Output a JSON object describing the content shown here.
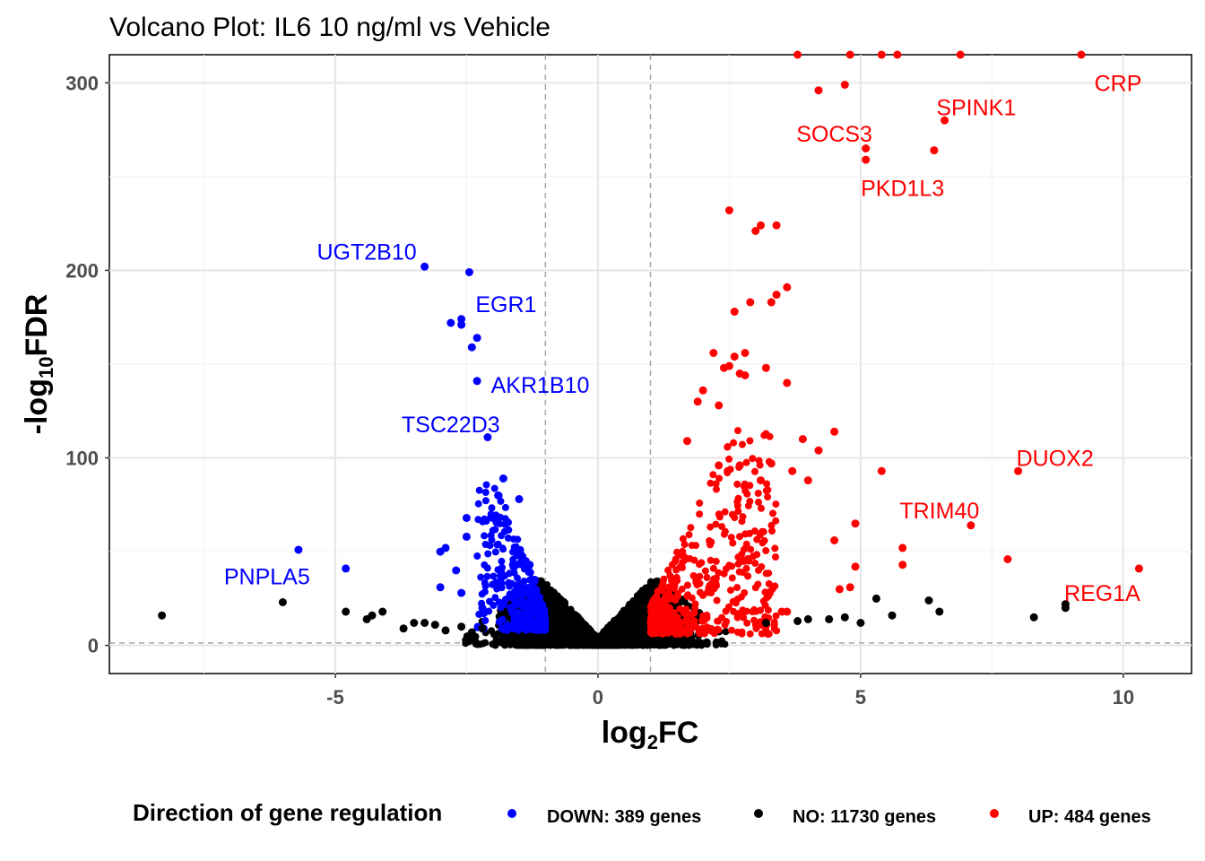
{
  "chart_data": {
    "type": "scatter",
    "title": "Volcano Plot: IL6 10 ng/ml vs Vehicle",
    "xlabel": {
      "main": "log",
      "sub": "2",
      "tail": "FC"
    },
    "ylabel": {
      "main": "-log",
      "sub": "10",
      "tail": "FDR"
    },
    "xlim": [
      -9.3,
      11.3
    ],
    "ylim": [
      -15,
      315
    ],
    "xticks": [
      -5,
      0,
      5,
      10
    ],
    "xtick_labels": [
      "-5",
      "0",
      "5",
      "10"
    ],
    "yticks": [
      0,
      100,
      200,
      300
    ],
    "ytick_labels": [
      "0",
      "100",
      "200",
      "300"
    ],
    "grid": true,
    "thresholds": {
      "log2fc": [
        -1,
        1
      ],
      "neg_log10_fdr": 1.3
    },
    "legend": {
      "title": "Direction of gene regulation",
      "placement": "bottom",
      "entries": [
        {
          "key": "down",
          "label": "DOWN: 389 genes",
          "color": "#0000ff"
        },
        {
          "key": "no",
          "label": "NO: 11730 genes",
          "color": "#000000"
        },
        {
          "key": "up",
          "label": "UP: 484 genes",
          "color": "#ff0000"
        }
      ]
    },
    "colors": {
      "down": "#0000ff",
      "no": "#000000",
      "up": "#ff0000"
    },
    "labeled_genes": [
      {
        "gene": "CRP",
        "x": 9.2,
        "y": 315,
        "group": "up",
        "lx": 9.9,
        "ly": 300
      },
      {
        "gene": "SPINK1",
        "x": 6.6,
        "y": 280,
        "group": "up",
        "lx": 7.2,
        "ly": 287
      },
      {
        "gene": "SOCS3",
        "x": 5.1,
        "y": 265,
        "group": "up",
        "lx": 4.5,
        "ly": 273
      },
      {
        "gene": "PKD1L3",
        "x": 5.1,
        "y": 259,
        "group": "up",
        "lx": 5.8,
        "ly": 244
      },
      {
        "gene": "DUOX2",
        "x": 8.0,
        "y": 93,
        "group": "up",
        "lx": 8.7,
        "ly": 100
      },
      {
        "gene": "TRIM40",
        "x": 7.1,
        "y": 64,
        "group": "up",
        "lx": 6.5,
        "ly": 72
      },
      {
        "gene": "REG1A",
        "x": 10.3,
        "y": 41,
        "group": "up",
        "lx": 9.6,
        "ly": 28
      },
      {
        "gene": "UGT2B10",
        "x": -3.3,
        "y": 202,
        "group": "down",
        "lx": -4.4,
        "ly": 210
      },
      {
        "gene": "EGR1",
        "x": -2.45,
        "y": 199,
        "group": "down",
        "lx": -1.75,
        "ly": 182
      },
      {
        "gene": "AKR1B10",
        "x": -2.3,
        "y": 141,
        "group": "down",
        "lx": -1.1,
        "ly": 139
      },
      {
        "gene": "TSC22D3",
        "x": -2.1,
        "y": 111,
        "group": "down",
        "lx": -2.8,
        "ly": 118
      },
      {
        "gene": "PNPLA5",
        "x": -5.7,
        "y": 51,
        "group": "down",
        "lx": -6.3,
        "ly": 37
      }
    ],
    "points": {
      "up": [
        [
          3.8,
          315
        ],
        [
          4.8,
          315
        ],
        [
          5.4,
          315
        ],
        [
          5.7,
          315
        ],
        [
          6.9,
          315
        ],
        [
          4.2,
          296
        ],
        [
          4.7,
          299
        ],
        [
          6.4,
          264
        ],
        [
          2.5,
          232
        ],
        [
          3.1,
          224
        ],
        [
          3.4,
          224
        ],
        [
          3.0,
          221
        ],
        [
          3.6,
          191
        ],
        [
          3.4,
          187
        ],
        [
          3.3,
          183
        ],
        [
          2.9,
          183
        ],
        [
          2.6,
          178
        ],
        [
          2.2,
          156
        ],
        [
          2.8,
          156
        ],
        [
          2.6,
          154
        ],
        [
          2.5,
          149
        ],
        [
          3.2,
          148
        ],
        [
          2.4,
          148
        ],
        [
          2.7,
          145
        ],
        [
          2.8,
          144
        ],
        [
          3.6,
          140
        ],
        [
          2.0,
          136
        ],
        [
          1.9,
          130
        ],
        [
          2.3,
          128
        ],
        [
          4.5,
          114
        ],
        [
          1.7,
          109
        ],
        [
          3.9,
          110
        ],
        [
          2.7,
          96
        ],
        [
          2.3,
          96
        ],
        [
          3.3,
          97
        ],
        [
          4.2,
          104
        ],
        [
          5.4,
          93
        ],
        [
          3.7,
          93
        ],
        [
          4.0,
          88
        ],
        [
          3.1,
          88
        ],
        [
          4.9,
          65
        ],
        [
          4.5,
          56
        ],
        [
          5.8,
          52
        ],
        [
          7.8,
          46
        ],
        [
          5.8,
          43
        ],
        [
          4.9,
          42
        ],
        [
          4.6,
          30
        ],
        [
          4.8,
          31
        ],
        [
          3.6,
          18
        ],
        [
          3.5,
          18
        ]
      ],
      "down": [
        [
          -4.8,
          41
        ],
        [
          -2.8,
          172
        ],
        [
          -2.6,
          174
        ],
        [
          -2.6,
          171
        ],
        [
          -2.3,
          164
        ],
        [
          -2.4,
          159
        ],
        [
          -1.8,
          89
        ],
        [
          -1.5,
          78
        ],
        [
          -1.9,
          80
        ],
        [
          -2.0,
          68
        ],
        [
          -2.5,
          68
        ],
        [
          -2.9,
          52
        ],
        [
          -3.0,
          50
        ],
        [
          -2.5,
          58
        ],
        [
          -2.7,
          40
        ],
        [
          -3.0,
          31
        ],
        [
          -2.6,
          28
        ],
        [
          -2.2,
          20
        ],
        [
          -1.6,
          25
        ],
        [
          -1.3,
          43
        ],
        [
          -1.2,
          35
        ]
      ],
      "no": [
        [
          -8.3,
          16
        ],
        [
          -6.0,
          23
        ],
        [
          -4.8,
          18
        ],
        [
          -4.4,
          14
        ],
        [
          -4.3,
          16
        ],
        [
          -4.1,
          18
        ],
        [
          -3.7,
          9
        ],
        [
          -3.5,
          12
        ],
        [
          -3.3,
          12
        ],
        [
          -3.1,
          11
        ],
        [
          -2.9,
          8
        ],
        [
          -2.6,
          10
        ],
        [
          -2.4,
          7
        ],
        [
          -2.2,
          9
        ],
        [
          4.0,
          14
        ],
        [
          4.7,
          15
        ],
        [
          5.0,
          12
        ],
        [
          5.3,
          25
        ],
        [
          5.6,
          16
        ],
        [
          6.3,
          24
        ],
        [
          6.5,
          18
        ],
        [
          8.3,
          15
        ],
        [
          8.9,
          22
        ],
        [
          8.9,
          20
        ],
        [
          3.2,
          12
        ],
        [
          3.8,
          13
        ],
        [
          4.4,
          14
        ]
      ]
    }
  }
}
